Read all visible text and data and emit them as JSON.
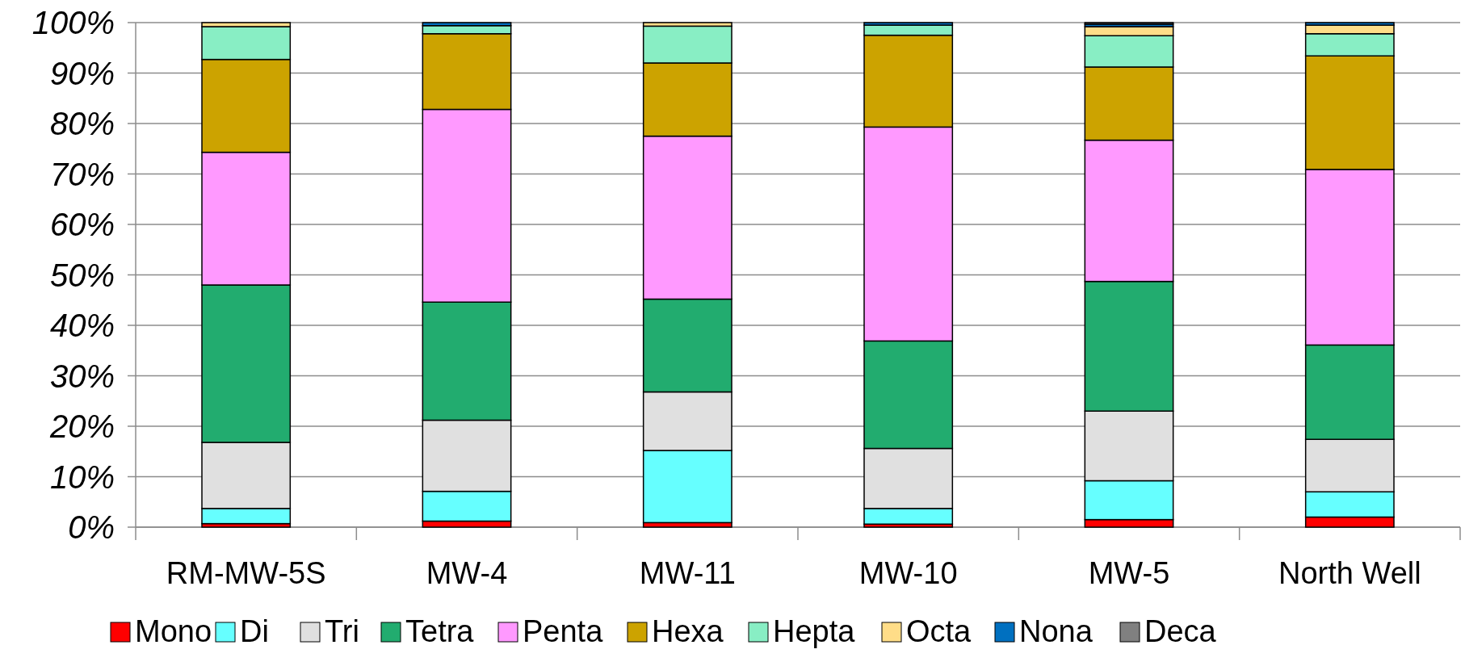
{
  "chart_data": {
    "type": "bar",
    "stacked": true,
    "categories": [
      "RM-MW-5S",
      "MW-4",
      "MW-11",
      "MW-10",
      "MW-5",
      "North Well"
    ],
    "series": [
      {
        "name": "Mono",
        "color": "#ff0000",
        "values": [
          0.7,
          1.2,
          0.9,
          0.6,
          1.5,
          2.0
        ]
      },
      {
        "name": "Di",
        "color": "#66ffff",
        "values": [
          3.0,
          5.9,
          14.3,
          3.1,
          7.7,
          5.0
        ]
      },
      {
        "name": "Tri",
        "color": "#e0e0e0",
        "values": [
          13.1,
          14.1,
          11.6,
          11.9,
          13.8,
          10.4
        ]
      },
      {
        "name": "Tetra",
        "color": "#22ac6f",
        "values": [
          31.2,
          23.4,
          18.4,
          21.3,
          25.7,
          18.7
        ]
      },
      {
        "name": "Penta",
        "color": "#ff99ff",
        "values": [
          26.3,
          38.2,
          32.3,
          42.4,
          28.0,
          34.8
        ]
      },
      {
        "name": "Hexa",
        "color": "#cca300",
        "values": [
          18.4,
          15.0,
          14.5,
          18.2,
          14.5,
          22.5
        ]
      },
      {
        "name": "Hepta",
        "color": "#88eec4",
        "values": [
          6.5,
          1.6,
          7.3,
          2.0,
          6.2,
          4.4
        ]
      },
      {
        "name": "Octa",
        "color": "#ffdd88",
        "values": [
          0.8,
          0,
          0.7,
          0,
          1.8,
          1.7
        ]
      },
      {
        "name": "Nona",
        "color": "#0070c0",
        "values": [
          0,
          0.6,
          0,
          0.5,
          0.5,
          0.5
        ]
      },
      {
        "name": "Deca",
        "color": "#808080",
        "values": [
          0,
          0,
          0,
          0,
          0.3,
          0
        ]
      }
    ],
    "ylim": [
      0,
      100
    ],
    "yticks": [
      {
        "value": 0,
        "label": "0%"
      },
      {
        "value": 10,
        "label": "10%"
      },
      {
        "value": 20,
        "label": "20%"
      },
      {
        "value": 30,
        "label": "30%"
      },
      {
        "value": 40,
        "label": "40%"
      },
      {
        "value": 50,
        "label": "50%"
      },
      {
        "value": 60,
        "label": "60%"
      },
      {
        "value": 70,
        "label": "70%"
      },
      {
        "value": 80,
        "label": "80%"
      },
      {
        "value": 90,
        "label": "90%"
      },
      {
        "value": 100,
        "label": "100%"
      }
    ],
    "grid": "y",
    "legend": "bottom"
  }
}
